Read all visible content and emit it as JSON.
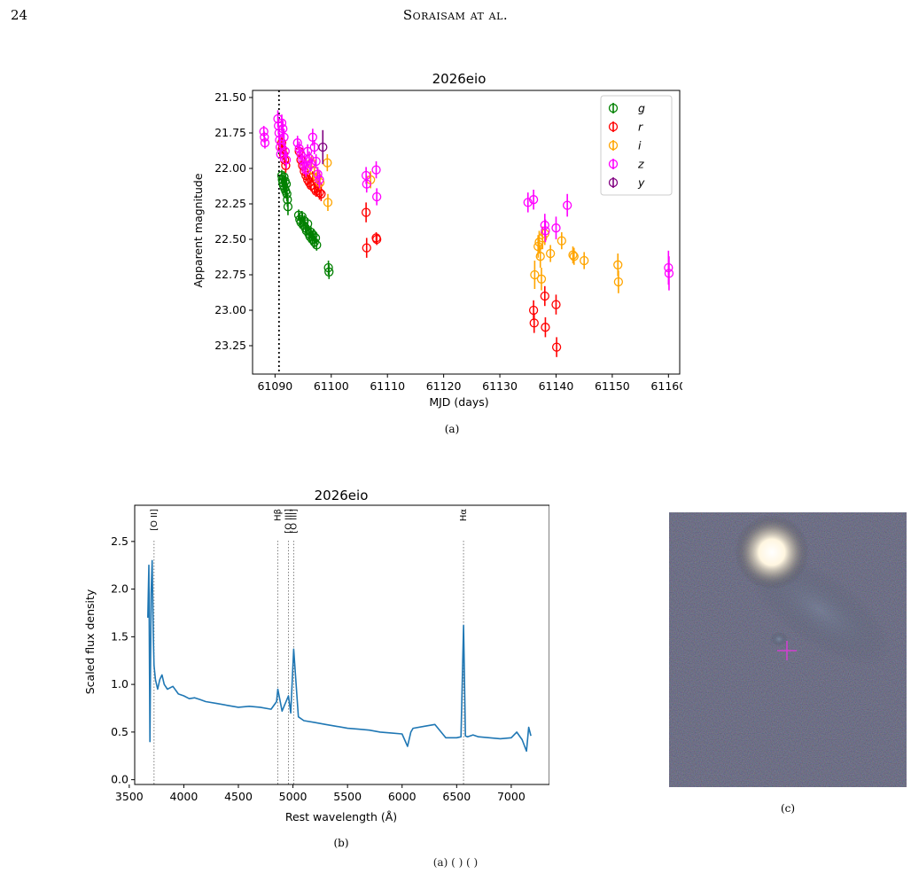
{
  "page": {
    "page_number": "24",
    "running_head": "Soraisam at al.",
    "figure_captions": [
      "(a)",
      "(b)",
      "(c)"
    ],
    "footer": "(a)  (  )  (  )"
  },
  "chart_data": [
    {
      "type": "scatter",
      "title": "2026eio",
      "xlabel": "MJD (days)",
      "ylabel": "Apparent magnitude",
      "xlim": [
        61086,
        61162
      ],
      "ylim": [
        23.45,
        21.45
      ],
      "y_inverted": true,
      "xticks": [
        61090,
        61100,
        61110,
        61120,
        61130,
        61140,
        61150,
        61160
      ],
      "yticks": [
        21.5,
        21.75,
        22.0,
        22.25,
        22.5,
        22.75,
        23.0,
        23.25
      ],
      "ytick_labels": [
        "21.50",
        "21.75",
        "22.00",
        "22.25",
        "22.50",
        "22.75",
        "23.00",
        "23.25"
      ],
      "vline": 61090.7,
      "legend_position": "top-right",
      "series": [
        {
          "name": "g",
          "color": "#008000",
          "points": [
            [
              61091.2,
              22.05,
              0.04
            ],
            [
              61091.3,
              22.08,
              0.04
            ],
            [
              61091.4,
              22.1,
              0.04
            ],
            [
              61091.5,
              22.12,
              0.04
            ],
            [
              61091.6,
              22.06,
              0.04
            ],
            [
              61091.7,
              22.14,
              0.04
            ],
            [
              61091.8,
              22.09,
              0.04
            ],
            [
              61091.9,
              22.16,
              0.05
            ],
            [
              61092.0,
              22.11,
              0.04
            ],
            [
              61092.1,
              22.18,
              0.05
            ],
            [
              61092.2,
              22.22,
              0.05
            ],
            [
              61092.3,
              22.27,
              0.06
            ],
            [
              61094.2,
              22.33,
              0.04
            ],
            [
              61094.4,
              22.36,
              0.04
            ],
            [
              61094.6,
              22.38,
              0.04
            ],
            [
              61094.8,
              22.34,
              0.04
            ],
            [
              61095.0,
              22.4,
              0.04
            ],
            [
              61095.2,
              22.37,
              0.04
            ],
            [
              61095.4,
              22.42,
              0.04
            ],
            [
              61095.6,
              22.44,
              0.04
            ],
            [
              61095.8,
              22.39,
              0.04
            ],
            [
              61096.0,
              22.46,
              0.04
            ],
            [
              61096.2,
              22.48,
              0.04
            ],
            [
              61096.4,
              22.45,
              0.04
            ],
            [
              61096.6,
              22.5,
              0.04
            ],
            [
              61096.8,
              22.47,
              0.04
            ],
            [
              61097.0,
              22.52,
              0.04
            ],
            [
              61097.2,
              22.49,
              0.04
            ],
            [
              61097.4,
              22.54,
              0.04
            ],
            [
              61099.5,
              22.7,
              0.05
            ],
            [
              61099.6,
              22.73,
              0.05
            ]
          ]
        },
        {
          "name": "r",
          "color": "#ff0000",
          "points": [
            [
              61091.2,
              21.82,
              0.04
            ],
            [
              61091.3,
              21.86,
              0.04
            ],
            [
              61091.5,
              21.9,
              0.04
            ],
            [
              61091.7,
              21.94,
              0.04
            ],
            [
              61091.9,
              21.98,
              0.05
            ],
            [
              61094.3,
              21.88,
              0.04
            ],
            [
              61094.6,
              21.94,
              0.04
            ],
            [
              61094.9,
              21.98,
              0.04
            ],
            [
              61095.2,
              22.02,
              0.04
            ],
            [
              61095.5,
              22.05,
              0.04
            ],
            [
              61095.8,
              22.08,
              0.04
            ],
            [
              61096.1,
              22.1,
              0.04
            ],
            [
              61096.4,
              22.12,
              0.04
            ],
            [
              61096.7,
              22.06,
              0.04
            ],
            [
              61097.0,
              22.14,
              0.04
            ],
            [
              61097.3,
              22.16,
              0.04
            ],
            [
              61097.6,
              22.12,
              0.05
            ],
            [
              61097.9,
              22.17,
              0.05
            ],
            [
              61098.2,
              22.18,
              0.05
            ],
            [
              61106.2,
              22.31,
              0.07
            ],
            [
              61106.3,
              22.56,
              0.07
            ],
            [
              61108.0,
              22.49,
              0.04
            ],
            [
              61108.1,
              22.5,
              0.04
            ],
            [
              61136.0,
              23.0,
              0.07
            ],
            [
              61136.1,
              23.09,
              0.07
            ],
            [
              61138.0,
              22.9,
              0.07
            ],
            [
              61138.1,
              23.12,
              0.07
            ],
            [
              61140.0,
              22.96,
              0.07
            ],
            [
              61140.1,
              23.26,
              0.07
            ]
          ]
        },
        {
          "name": "i",
          "color": "#ffa500",
          "points": [
            [
              61096.5,
              21.96,
              0.05
            ],
            [
              61097.0,
              22.02,
              0.05
            ],
            [
              61097.5,
              22.06,
              0.05
            ],
            [
              61098.0,
              22.1,
              0.05
            ],
            [
              61099.3,
              21.96,
              0.06
            ],
            [
              61099.4,
              22.24,
              0.06
            ],
            [
              61107.0,
              22.08,
              0.06
            ],
            [
              61136.2,
              22.75,
              0.1
            ],
            [
              61136.8,
              22.55,
              0.08
            ],
            [
              61137.0,
              22.52,
              0.08
            ],
            [
              61137.2,
              22.62,
              0.08
            ],
            [
              61137.4,
              22.78,
              0.08
            ],
            [
              61137.6,
              22.49,
              0.08
            ],
            [
              61138.0,
              22.46,
              0.08
            ],
            [
              61139.0,
              22.6,
              0.06
            ],
            [
              61141.0,
              22.51,
              0.06
            ],
            [
              61143.0,
              22.61,
              0.06
            ],
            [
              61143.2,
              22.62,
              0.06
            ],
            [
              61145.0,
              22.65,
              0.06
            ],
            [
              61151.0,
              22.68,
              0.08
            ],
            [
              61151.1,
              22.8,
              0.08
            ]
          ]
        },
        {
          "name": "z",
          "color": "#ff00ff",
          "points": [
            [
              61088.0,
              21.74,
              0.04
            ],
            [
              61088.1,
              21.78,
              0.04
            ],
            [
              61088.2,
              21.82,
              0.04
            ],
            [
              61090.5,
              21.65,
              0.06
            ],
            [
              61090.6,
              21.7,
              0.06
            ],
            [
              61090.7,
              21.75,
              0.05
            ],
            [
              61090.8,
              21.8,
              0.05
            ],
            [
              61090.9,
              21.85,
              0.05
            ],
            [
              61091.0,
              21.9,
              0.05
            ],
            [
              61091.2,
              21.68,
              0.06
            ],
            [
              61091.4,
              21.72,
              0.06
            ],
            [
              61091.6,
              21.78,
              0.06
            ],
            [
              61091.8,
              21.88,
              0.06
            ],
            [
              61092.0,
              21.94,
              0.06
            ],
            [
              61094.0,
              21.82,
              0.05
            ],
            [
              61094.3,
              21.86,
              0.05
            ],
            [
              61094.6,
              21.9,
              0.05
            ],
            [
              61094.9,
              21.94,
              0.05
            ],
            [
              61095.2,
              21.98,
              0.05
            ],
            [
              61095.5,
              22.01,
              0.05
            ],
            [
              61095.8,
              21.88,
              0.05
            ],
            [
              61096.1,
              21.93,
              0.05
            ],
            [
              61096.4,
              21.97,
              0.05
            ],
            [
              61096.7,
              21.78,
              0.06
            ],
            [
              61097.0,
              21.85,
              0.05
            ],
            [
              61097.3,
              21.95,
              0.05
            ],
            [
              61097.6,
              22.04,
              0.05
            ],
            [
              61097.9,
              22.08,
              0.06
            ],
            [
              61106.2,
              22.05,
              0.06
            ],
            [
              61106.3,
              22.11,
              0.06
            ],
            [
              61108.0,
              22.01,
              0.06
            ],
            [
              61108.1,
              22.2,
              0.06
            ],
            [
              61135.0,
              22.24,
              0.07
            ],
            [
              61136.0,
              22.22,
              0.07
            ],
            [
              61138.0,
              22.4,
              0.08
            ],
            [
              61138.1,
              22.44,
              0.08
            ],
            [
              61140.0,
              22.42,
              0.08
            ],
            [
              61142.0,
              22.26,
              0.08
            ],
            [
              61160.0,
              22.7,
              0.12
            ],
            [
              61160.1,
              22.74,
              0.12
            ]
          ]
        },
        {
          "name": "y",
          "color": "#800080",
          "points": [
            [
              61098.5,
              21.85,
              0.12
            ]
          ]
        }
      ]
    },
    {
      "type": "line",
      "title": "2026eio",
      "xlabel": "Rest wavelength (Å)",
      "ylabel": "Scaled flux density",
      "xlim": [
        3550,
        7350
      ],
      "ylim": [
        -0.05,
        2.88
      ],
      "xticks": [
        3500,
        4000,
        4500,
        5000,
        5500,
        6000,
        6500,
        7000
      ],
      "yticks": [
        0.0,
        0.5,
        1.0,
        1.5,
        2.0,
        2.5
      ],
      "ytick_labels": [
        "0.0",
        "0.5",
        "1.0",
        "1.5",
        "2.0",
        "2.5"
      ],
      "color": "#1f77b4",
      "lines": [
        {
          "label": "[O II]",
          "x": 3727
        },
        {
          "label": "Hβ",
          "x": 4861
        },
        {
          "label": "[O III]",
          "x": 4959
        },
        {
          "label": "[O III]",
          "x": 5007
        },
        {
          "label": "Hα",
          "x": 6563
        }
      ],
      "series": [
        {
          "x": [
            3670,
            3680,
            3690,
            3700,
            3710,
            3720,
            3727,
            3740,
            3760,
            3780,
            3800,
            3820,
            3850,
            3900,
            3950,
            4000,
            4050,
            4100,
            4150,
            4200,
            4300,
            4400,
            4500,
            4600,
            4700,
            4800,
            4850,
            4861,
            4900,
            4959,
            4980,
            5007,
            5050,
            5100,
            5200,
            5300,
            5400,
            5500,
            5600,
            5700,
            5800,
            5900,
            6000,
            6050,
            6080,
            6100,
            6200,
            6300,
            6400,
            6500,
            6540,
            6563,
            6580,
            6600,
            6650,
            6700,
            6800,
            6900,
            7000,
            7050,
            7100,
            7140,
            7160,
            7180
          ],
          "y": [
            1.7,
            2.25,
            0.4,
            1.95,
            2.3,
            1.55,
            1.2,
            1.05,
            0.95,
            1.05,
            1.1,
            1.0,
            0.95,
            0.98,
            0.9,
            0.88,
            0.85,
            0.86,
            0.84,
            0.82,
            0.8,
            0.78,
            0.76,
            0.77,
            0.76,
            0.74,
            0.82,
            0.95,
            0.72,
            0.88,
            0.7,
            1.37,
            0.66,
            0.62,
            0.6,
            0.58,
            0.56,
            0.54,
            0.53,
            0.52,
            0.5,
            0.49,
            0.48,
            0.35,
            0.5,
            0.54,
            0.56,
            0.58,
            0.44,
            0.44,
            0.45,
            1.62,
            0.46,
            0.45,
            0.47,
            0.45,
            0.44,
            0.43,
            0.44,
            0.5,
            0.42,
            0.3,
            0.55,
            0.46
          ]
        }
      ]
    }
  ]
}
